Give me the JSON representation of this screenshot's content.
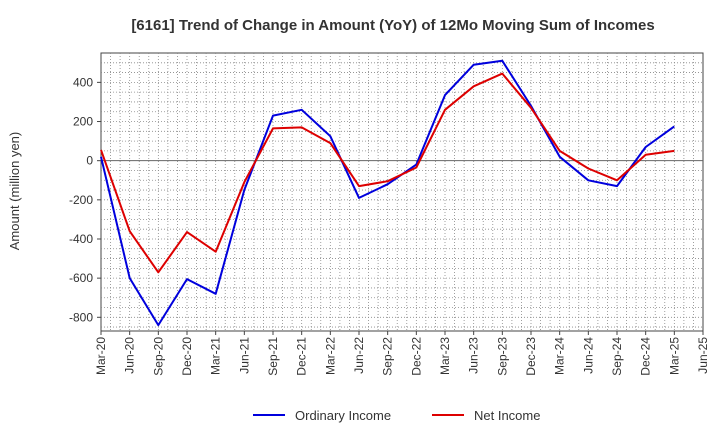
{
  "chart_data": {
    "type": "line",
    "title": "[6161]  Trend of Change in Amount (YoY) of 12Mo Moving Sum of Incomes",
    "ylabel": "Amount (million yen)",
    "xlabel": "",
    "ylim": [
      -870,
      550
    ],
    "yticks": [
      400,
      200,
      0,
      -200,
      -400,
      -600,
      -800
    ],
    "categories": [
      "Mar-20",
      "Jun-20",
      "Sep-20",
      "Dec-20",
      "Mar-21",
      "Jun-21",
      "Sep-21",
      "Dec-21",
      "Mar-22",
      "Jun-22",
      "Sep-22",
      "Dec-22",
      "Mar-23",
      "Jun-23",
      "Sep-23",
      "Dec-23",
      "Mar-24",
      "Jun-24",
      "Sep-24",
      "Dec-24",
      "Mar-25",
      "Jun-25"
    ],
    "grid": true,
    "legend_position": "bottom",
    "series": [
      {
        "name": "Ordinary Income",
        "color": "#0000dd",
        "values": [
          20,
          -600,
          -840,
          -605,
          -680,
          -150,
          230,
          260,
          125,
          -190,
          -120,
          -20,
          335,
          490,
          510,
          280,
          20,
          -100,
          -130,
          70,
          175,
          null
        ]
      },
      {
        "name": "Net Income",
        "color": "#dd0000",
        "values": [
          55,
          -360,
          -570,
          -365,
          -465,
          -110,
          165,
          170,
          90,
          -130,
          -105,
          -35,
          260,
          380,
          445,
          270,
          50,
          -40,
          -100,
          30,
          50,
          null
        ]
      }
    ]
  }
}
